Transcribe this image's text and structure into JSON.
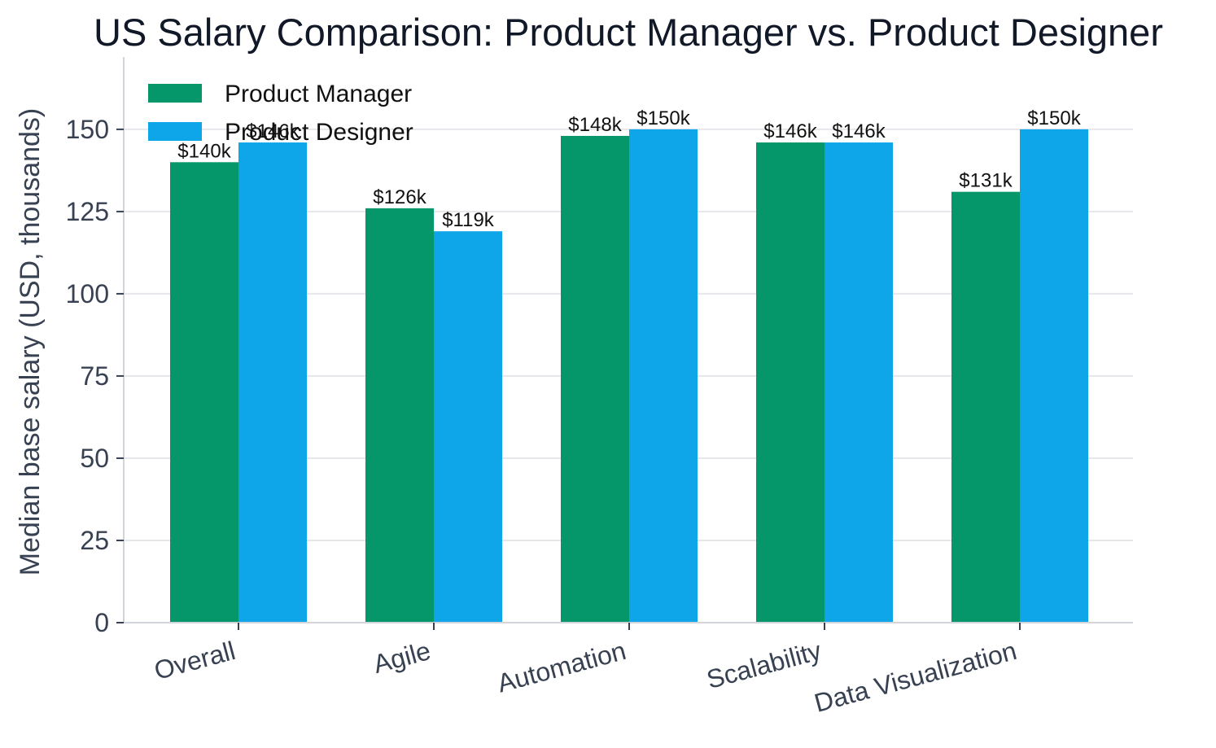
{
  "chart_data": {
    "type": "bar",
    "title": "US Salary Comparison: Product Manager vs. Product Designer",
    "xlabel": "",
    "ylabel": "Median base salary (USD, thousands)",
    "categories": [
      "Overall",
      "Agile",
      "Automation",
      "Scalability",
      "Data Visualization"
    ],
    "series": [
      {
        "name": "Product Manager",
        "color": "#059669",
        "values": [
          140,
          126,
          148,
          146,
          131
        ],
        "labels": [
          "$140k",
          "$126k",
          "$148k",
          "$146k",
          "$131k"
        ]
      },
      {
        "name": "Product Designer",
        "color": "#0EA5E9",
        "values": [
          146,
          119,
          150,
          146,
          150
        ],
        "labels": [
          "$146k",
          "$119k",
          "$150k",
          "$146k",
          "$150k"
        ]
      }
    ],
    "ylim": [
      0,
      172
    ],
    "yticks": [
      0,
      25,
      50,
      75,
      100,
      125,
      150
    ],
    "grid": "horizontal",
    "legend_position": "top-left"
  }
}
